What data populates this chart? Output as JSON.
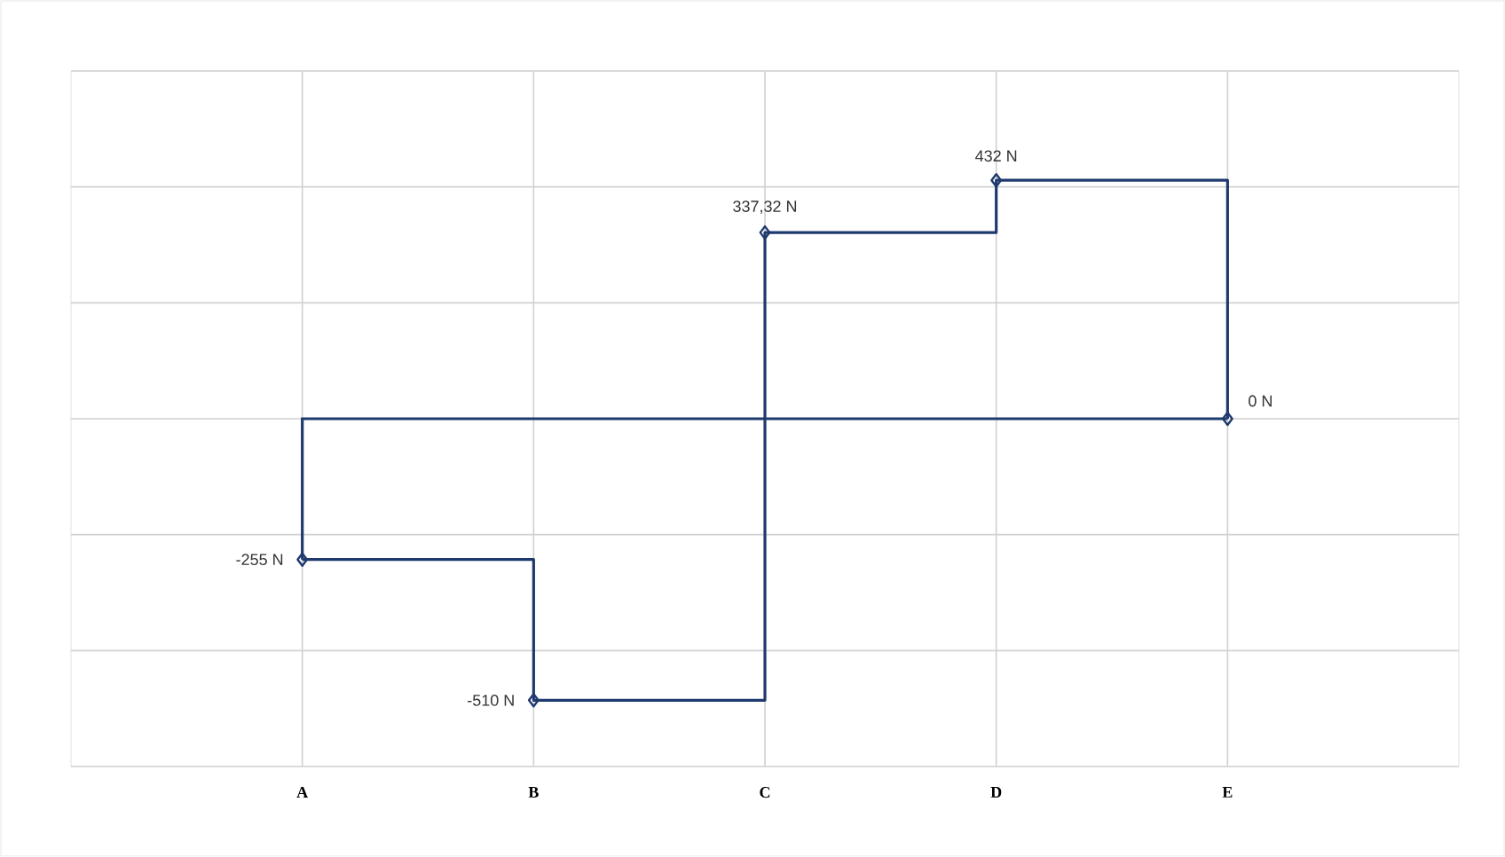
{
  "chart_data": {
    "type": "step",
    "categories": [
      "A",
      "B",
      "C",
      "D",
      "E"
    ],
    "series": [
      {
        "color": "#1f3a6e",
        "values": [
          -255,
          -510,
          337.32,
          432,
          0
        ],
        "value_labels": [
          "-255 N",
          "-510 N",
          "337,32 N",
          "432 N",
          "0 N"
        ]
      }
    ],
    "ylim": [
      -630,
      630
    ],
    "yticks": [
      {
        "value": -630,
        "label": null
      },
      {
        "value": -420,
        "label": null
      },
      {
        "value": -210,
        "label": null
      },
      {
        "value": 0,
        "label": null
      },
      {
        "value": 210,
        "label": null
      },
      {
        "value": 420,
        "label": null
      },
      {
        "value": 630,
        "label": null
      }
    ],
    "ref_lines": [
      {
        "axis": "y",
        "value": 0,
        "color": "#1f3a6e"
      }
    ],
    "grid": true,
    "tick_labels": "x",
    "marker": "diamond",
    "line_style": "solid"
  }
}
